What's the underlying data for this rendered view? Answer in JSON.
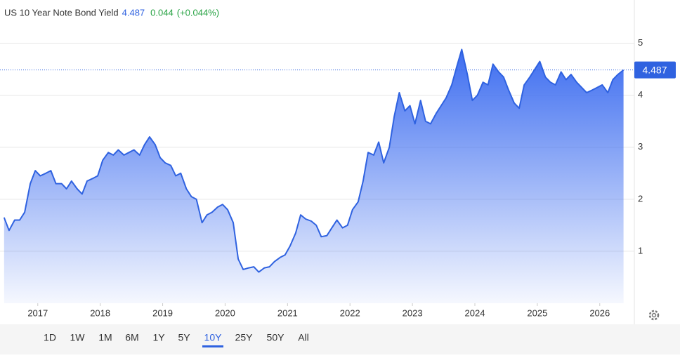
{
  "chart_data": {
    "type": "area",
    "title": "US 10 Year Note Bond Yield",
    "last_value": 4.487,
    "change": 0.044,
    "change_percent_label": "(+0.044%)",
    "color": "#2f62e0",
    "xlim": [
      2016.44,
      2026.43
    ],
    "xticks": [
      2017,
      2018,
      2019,
      2020,
      2021,
      2022,
      2023,
      2024,
      2025,
      2026
    ],
    "ylim": [
      0,
      5.4
    ],
    "yticks": [
      1,
      2,
      3,
      4,
      5
    ],
    "grid": true,
    "ranges": [
      "1D",
      "1W",
      "1M",
      "6M",
      "1Y",
      "5Y",
      "10Y",
      "25Y",
      "50Y",
      "All"
    ],
    "selected_range": "10Y",
    "x": [
      2016.46,
      2016.54,
      2016.63,
      2016.71,
      2016.79,
      2016.88,
      2016.96,
      2017.04,
      2017.13,
      2017.21,
      2017.29,
      2017.38,
      2017.46,
      2017.54,
      2017.63,
      2017.71,
      2017.79,
      2017.88,
      2017.96,
      2018.04,
      2018.13,
      2018.21,
      2018.29,
      2018.38,
      2018.46,
      2018.54,
      2018.63,
      2018.71,
      2018.79,
      2018.88,
      2018.96,
      2019.04,
      2019.13,
      2019.21,
      2019.29,
      2019.38,
      2019.46,
      2019.54,
      2019.63,
      2019.71,
      2019.79,
      2019.88,
      2019.96,
      2020.04,
      2020.13,
      2020.21,
      2020.29,
      2020.38,
      2020.46,
      2020.54,
      2020.63,
      2020.71,
      2020.79,
      2020.88,
      2020.96,
      2021.04,
      2021.13,
      2021.21,
      2021.29,
      2021.38,
      2021.46,
      2021.54,
      2021.63,
      2021.71,
      2021.79,
      2021.88,
      2021.96,
      2022.04,
      2022.13,
      2022.21,
      2022.29,
      2022.38,
      2022.46,
      2022.54,
      2022.63,
      2022.71,
      2022.79,
      2022.88,
      2022.96,
      2023.04,
      2023.13,
      2023.21,
      2023.29,
      2023.38,
      2023.46,
      2023.54,
      2023.63,
      2023.71,
      2023.79,
      2023.88,
      2023.96,
      2024.04,
      2024.13,
      2024.21,
      2024.29,
      2024.38,
      2024.46,
      2024.54,
      2024.63,
      2024.71,
      2024.79,
      2024.88,
      2024.96,
      2025.04,
      2025.13,
      2025.21,
      2025.29,
      2025.38,
      2025.46,
      2025.54,
      2025.63,
      2025.71,
      2025.79,
      2025.88,
      2025.96,
      2026.04,
      2026.13,
      2026.21,
      2026.29,
      2026.38
    ],
    "values": [
      1.65,
      1.4,
      1.6,
      1.6,
      1.75,
      2.3,
      2.55,
      2.45,
      2.5,
      2.55,
      2.3,
      2.3,
      2.2,
      2.35,
      2.2,
      2.1,
      2.35,
      2.4,
      2.45,
      2.75,
      2.9,
      2.85,
      2.95,
      2.85,
      2.9,
      2.95,
      2.85,
      3.05,
      3.2,
      3.05,
      2.8,
      2.7,
      2.65,
      2.45,
      2.5,
      2.2,
      2.05,
      2.0,
      1.55,
      1.7,
      1.75,
      1.85,
      1.9,
      1.8,
      1.55,
      0.85,
      0.65,
      0.68,
      0.7,
      0.6,
      0.68,
      0.7,
      0.8,
      0.88,
      0.93,
      1.1,
      1.35,
      1.7,
      1.62,
      1.58,
      1.5,
      1.28,
      1.3,
      1.45,
      1.6,
      1.45,
      1.5,
      1.8,
      1.95,
      2.35,
      2.9,
      2.85,
      3.1,
      2.7,
      3.0,
      3.6,
      4.05,
      3.7,
      3.8,
      3.45,
      3.9,
      3.5,
      3.45,
      3.65,
      3.8,
      3.95,
      4.2,
      4.55,
      4.88,
      4.4,
      3.9,
      4.0,
      4.25,
      4.2,
      4.6,
      4.45,
      4.35,
      4.1,
      3.85,
      3.75,
      4.2,
      4.35,
      4.5,
      4.65,
      4.35,
      4.25,
      4.2,
      4.45,
      4.3,
      4.4,
      4.25,
      4.15,
      4.05,
      4.1,
      4.15,
      4.2,
      4.05,
      4.3,
      4.4,
      4.487
    ]
  }
}
